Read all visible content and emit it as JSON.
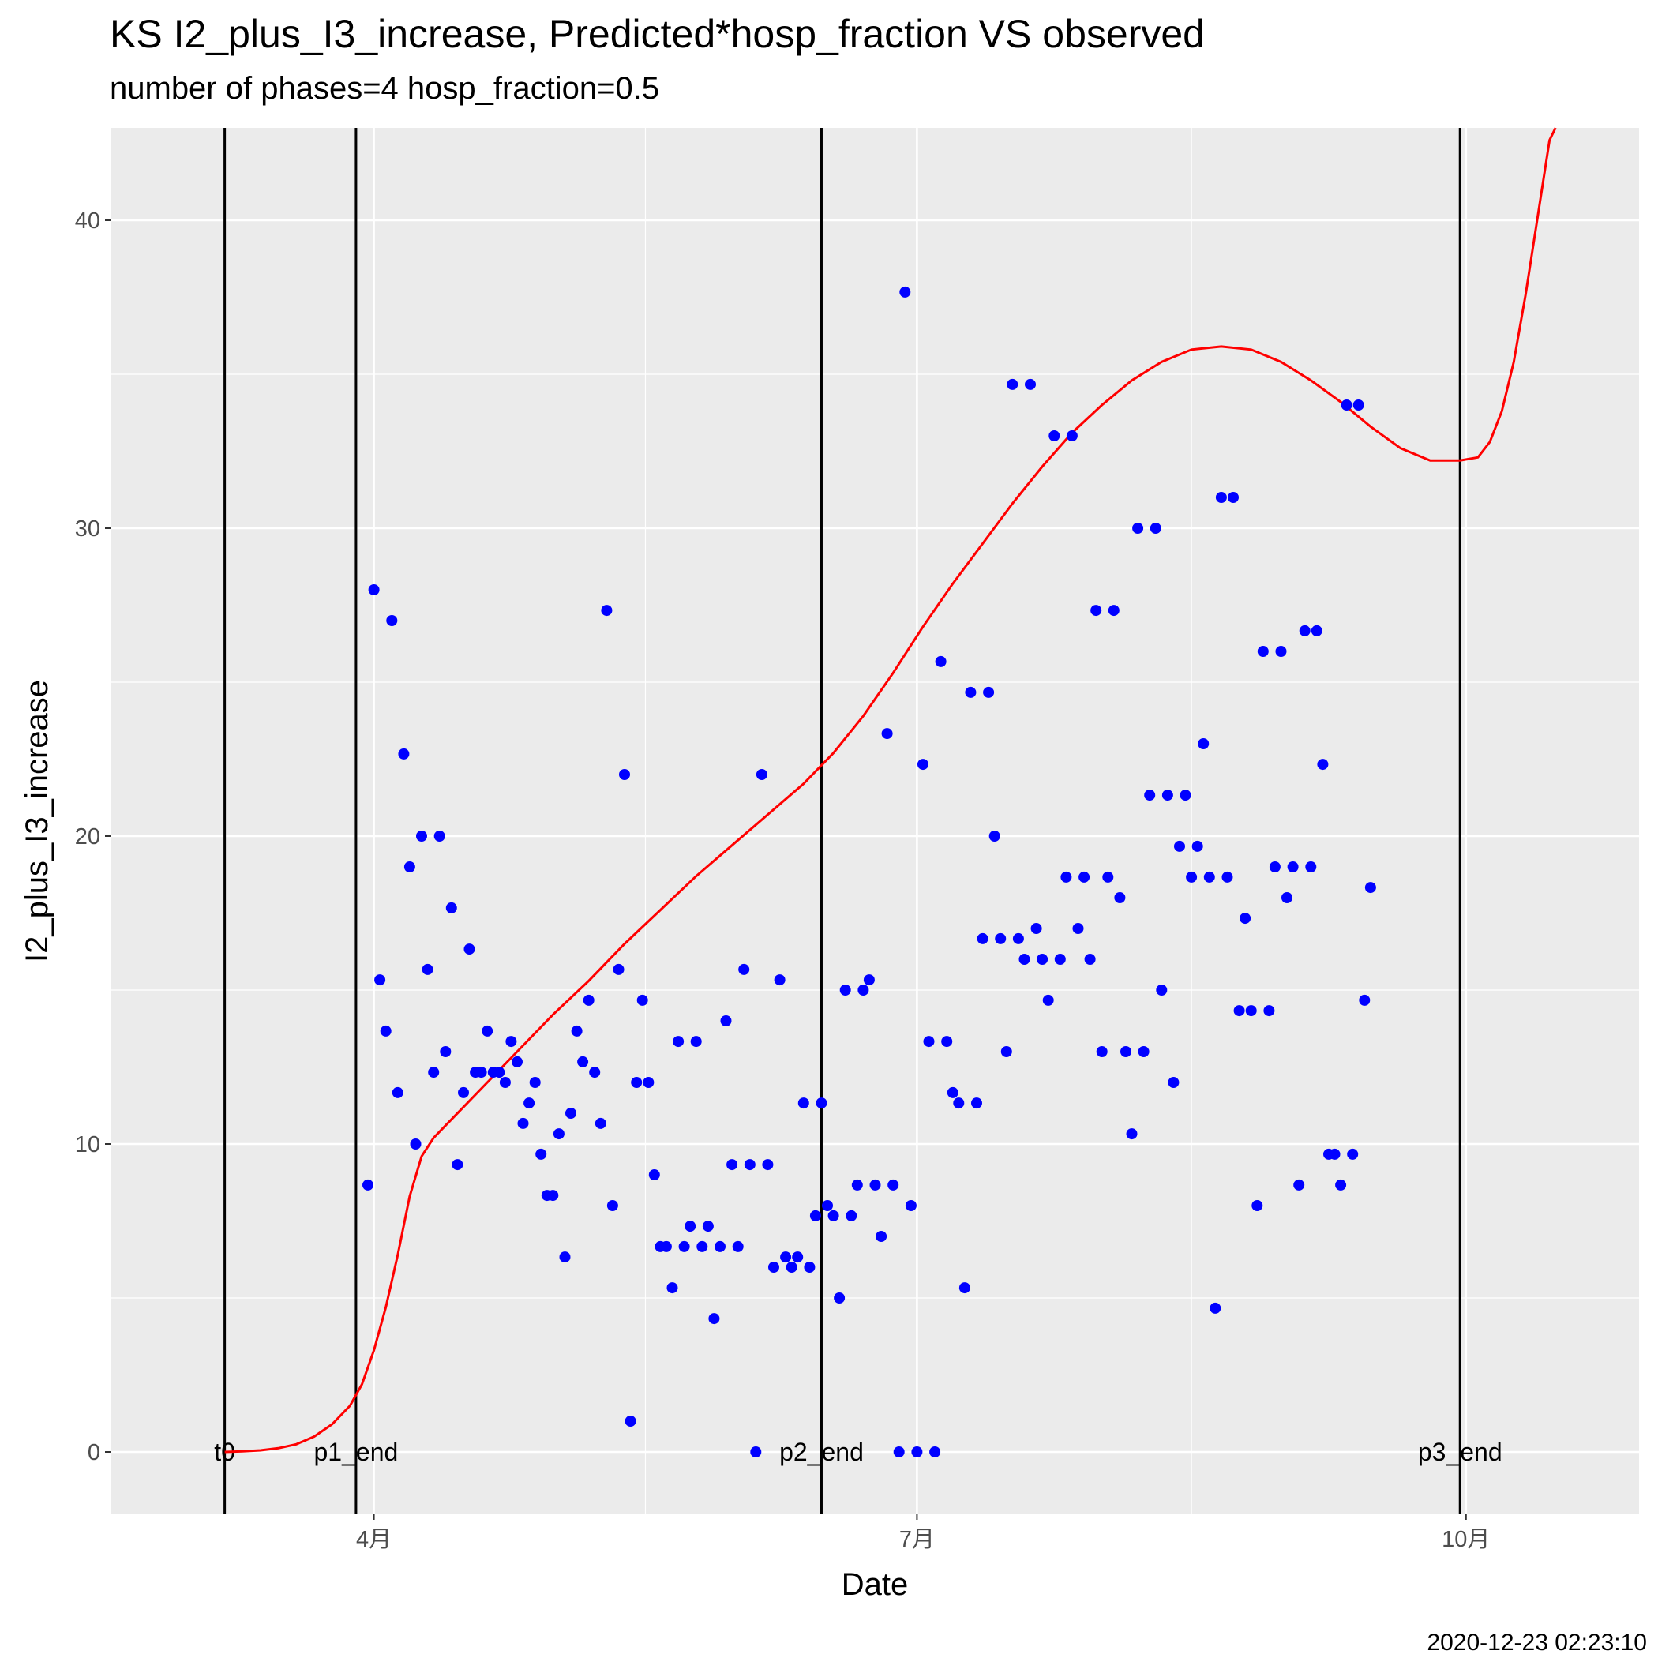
{
  "chart_data": {
    "type": "scatter",
    "title": "KS I2_plus_I3_increase, Predicted*hosp_fraction VS observed",
    "subtitle": "number of phases=4   hosp_fraction=0.5",
    "caption": "2020-12-23 02:23:10",
    "xlabel": "Date",
    "ylabel": "I2_plus_I3_increase",
    "xlim": [
      "2020-02-17",
      "2020-10-30"
    ],
    "ylim": [
      -2,
      43
    ],
    "grid": true,
    "x_ticks": [
      {
        "date": "2020-04-01",
        "label": "4月"
      },
      {
        "date": "2020-07-01",
        "label": "7月"
      },
      {
        "date": "2020-10-01",
        "label": "10月"
      }
    ],
    "y_ticks": [
      0,
      10,
      20,
      30,
      40
    ],
    "phase_lines": [
      {
        "date": "2020-03-07",
        "label": "t0"
      },
      {
        "date": "2020-03-29",
        "label": "p1_end"
      },
      {
        "date": "2020-06-15",
        "label": "p2_end"
      },
      {
        "date": "2020-09-30",
        "label": "p3_end"
      }
    ],
    "series": [
      {
        "kind": "points",
        "color": "#0000ff",
        "x": [
          "2020-03-31",
          "2020-04-01",
          "2020-04-02",
          "2020-04-03",
          "2020-04-04",
          "2020-04-05",
          "2020-04-06",
          "2020-04-07",
          "2020-04-08",
          "2020-04-09",
          "2020-04-10",
          "2020-04-11",
          "2020-04-12",
          "2020-04-13",
          "2020-04-14",
          "2020-04-15",
          "2020-04-16",
          "2020-04-17",
          "2020-04-18",
          "2020-04-19",
          "2020-04-20",
          "2020-04-21",
          "2020-04-22",
          "2020-04-23",
          "2020-04-24",
          "2020-04-25",
          "2020-04-26",
          "2020-04-27",
          "2020-04-28",
          "2020-04-29",
          "2020-04-30",
          "2020-05-01",
          "2020-05-02",
          "2020-05-03",
          "2020-05-04",
          "2020-05-05",
          "2020-05-06",
          "2020-05-07",
          "2020-05-08",
          "2020-05-09",
          "2020-05-10",
          "2020-05-11",
          "2020-05-12",
          "2020-05-13",
          "2020-05-14",
          "2020-05-15",
          "2020-05-16",
          "2020-05-17",
          "2020-05-18",
          "2020-05-19",
          "2020-05-20",
          "2020-05-21",
          "2020-05-22",
          "2020-05-23",
          "2020-05-24",
          "2020-05-25",
          "2020-05-26",
          "2020-05-27",
          "2020-05-28",
          "2020-05-29",
          "2020-05-30",
          "2020-05-31",
          "2020-06-01",
          "2020-06-02",
          "2020-06-03",
          "2020-06-04",
          "2020-06-05",
          "2020-06-06",
          "2020-06-07",
          "2020-06-08",
          "2020-06-09",
          "2020-06-10",
          "2020-06-11",
          "2020-06-12",
          "2020-06-13",
          "2020-06-14",
          "2020-06-15",
          "2020-06-16",
          "2020-06-17",
          "2020-06-18",
          "2020-06-19",
          "2020-06-20",
          "2020-06-21",
          "2020-06-22",
          "2020-06-23",
          "2020-06-24",
          "2020-06-25",
          "2020-06-26",
          "2020-06-27",
          "2020-06-28",
          "2020-06-29",
          "2020-06-30",
          "2020-07-01",
          "2020-07-02",
          "2020-07-03",
          "2020-07-04",
          "2020-07-05",
          "2020-07-06",
          "2020-07-07",
          "2020-07-08",
          "2020-07-09",
          "2020-07-10",
          "2020-07-11",
          "2020-07-12",
          "2020-07-13",
          "2020-07-14",
          "2020-07-15",
          "2020-07-16",
          "2020-07-17",
          "2020-07-18",
          "2020-07-19",
          "2020-07-20",
          "2020-07-21",
          "2020-07-22",
          "2020-07-23",
          "2020-07-24",
          "2020-07-25",
          "2020-07-26",
          "2020-07-27",
          "2020-07-28",
          "2020-07-29",
          "2020-07-30",
          "2020-07-31",
          "2020-08-01",
          "2020-08-02",
          "2020-08-03",
          "2020-08-04",
          "2020-08-05",
          "2020-08-06",
          "2020-08-07",
          "2020-08-08",
          "2020-08-09",
          "2020-08-10",
          "2020-08-11",
          "2020-08-12",
          "2020-08-13",
          "2020-08-14",
          "2020-08-15",
          "2020-08-16",
          "2020-08-17",
          "2020-08-18",
          "2020-08-19",
          "2020-08-20",
          "2020-08-21",
          "2020-08-22",
          "2020-08-23",
          "2020-08-24",
          "2020-08-25",
          "2020-08-26",
          "2020-08-27",
          "2020-08-28",
          "2020-08-29",
          "2020-08-30",
          "2020-08-31",
          "2020-09-01",
          "2020-09-02",
          "2020-09-03",
          "2020-09-04",
          "2020-09-05",
          "2020-09-06",
          "2020-09-07",
          "2020-09-08",
          "2020-09-09",
          "2020-09-10",
          "2020-09-11",
          "2020-09-12",
          "2020-09-13",
          "2020-09-14",
          "2020-09-15"
        ],
        "y": [
          8.67,
          28,
          15.33,
          13.67,
          27,
          11.67,
          22.67,
          19,
          10,
          20,
          15.67,
          12.33,
          20,
          13,
          17.67,
          9.33,
          11.67,
          16.33,
          12.33,
          12.33,
          13.67,
          12.33,
          12.33,
          12,
          13.33,
          12.67,
          10.67,
          11.33,
          12,
          9.67,
          8.33,
          8.33,
          10.33,
          6.33,
          11,
          13.67,
          12.67,
          14.67,
          12.33,
          10.67,
          27.33,
          8,
          15.67,
          22,
          1,
          12,
          14.67,
          12,
          9,
          6.67,
          6.67,
          5.33,
          13.33,
          6.67,
          7.33,
          13.33,
          6.67,
          7.33,
          4.33,
          6.67,
          14,
          9.33,
          6.67,
          15.67,
          9.33,
          0,
          22,
          9.33,
          6,
          15.33,
          6.33,
          6,
          6.33,
          11.33,
          6,
          7.67,
          11.33,
          8,
          7.67,
          5,
          15,
          7.67,
          8.67,
          15,
          15.33,
          8.67,
          7,
          23.33,
          8.67,
          0,
          37.67,
          8,
          0,
          22.33,
          13.33,
          0,
          25.67,
          13.33,
          11.67,
          11.33,
          5.33,
          24.67,
          11.33,
          16.67,
          24.67,
          20,
          16.67,
          13,
          34.67,
          16.67,
          16,
          34.67,
          17,
          16,
          14.67,
          33,
          16,
          18.67,
          33,
          17,
          18.67,
          16,
          27.33,
          13,
          18.67,
          27.33,
          18,
          13,
          10.33,
          30,
          13,
          21.33,
          30,
          15,
          21.33,
          12,
          19.67,
          21.33,
          18.67,
          19.67,
          23,
          18.67,
          4.67,
          31,
          18.67,
          31,
          14.33,
          17.33,
          14.33,
          8,
          26,
          14.33,
          19,
          26,
          18,
          19,
          8.67,
          26.67,
          19,
          26.67,
          22.33,
          9.67,
          9.67,
          8.67,
          34,
          9.67,
          34,
          14.67,
          18.33
        ]
      },
      {
        "kind": "line",
        "name": "Predicted*hosp_fraction",
        "color": "#ff0000",
        "x": [
          "2020-03-07",
          "2020-03-10",
          "2020-03-13",
          "2020-03-16",
          "2020-03-19",
          "2020-03-22",
          "2020-03-25",
          "2020-03-28",
          "2020-03-30",
          "2020-04-01",
          "2020-04-03",
          "2020-04-05",
          "2020-04-07",
          "2020-04-09",
          "2020-04-11",
          "2020-04-13",
          "2020-04-16",
          "2020-04-20",
          "2020-04-25",
          "2020-05-01",
          "2020-05-07",
          "2020-05-13",
          "2020-05-19",
          "2020-05-25",
          "2020-05-31",
          "2020-06-06",
          "2020-06-12",
          "2020-06-17",
          "2020-06-22",
          "2020-06-27",
          "2020-07-02",
          "2020-07-07",
          "2020-07-12",
          "2020-07-17",
          "2020-07-22",
          "2020-07-27",
          "2020-08-01",
          "2020-08-06",
          "2020-08-11",
          "2020-08-16",
          "2020-08-21",
          "2020-08-26",
          "2020-08-31",
          "2020-09-05",
          "2020-09-10",
          "2020-09-15",
          "2020-09-20",
          "2020-09-25",
          "2020-09-30",
          "2020-10-03",
          "2020-10-05",
          "2020-10-07",
          "2020-10-09",
          "2020-10-11",
          "2020-10-13",
          "2020-10-15",
          "2020-10-16"
        ],
        "y": [
          0,
          0.02,
          0.05,
          0.12,
          0.25,
          0.5,
          0.9,
          1.5,
          2.2,
          3.3,
          4.7,
          6.4,
          8.3,
          9.6,
          10.2,
          10.6,
          11.2,
          12.0,
          13.0,
          14.2,
          15.3,
          16.5,
          17.6,
          18.7,
          19.7,
          20.7,
          21.7,
          22.7,
          23.9,
          25.3,
          26.8,
          28.2,
          29.5,
          30.8,
          32.0,
          33.1,
          34.0,
          34.8,
          35.4,
          35.8,
          35.9,
          35.8,
          35.4,
          34.8,
          34.1,
          33.3,
          32.6,
          32.2,
          32.2,
          32.3,
          32.8,
          33.8,
          35.4,
          37.6,
          40.1,
          42.6,
          43.5
        ]
      }
    ]
  }
}
